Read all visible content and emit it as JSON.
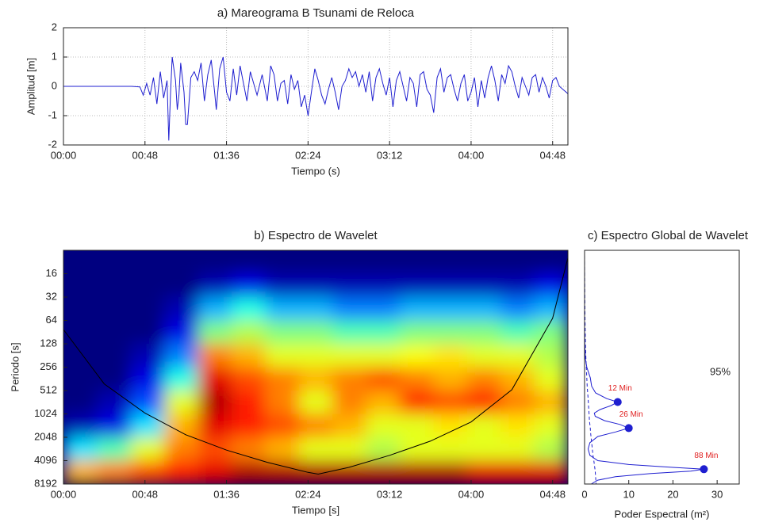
{
  "chart_data": [
    {
      "type": "line",
      "title": "a) Mareograma B Tsunami de Reloca",
      "xlabel": "Tiempo (s)",
      "ylabel": "Amplitud [m]",
      "x": [
        0,
        40,
        45,
        47,
        49,
        51,
        53,
        55,
        57,
        59,
        61,
        62,
        63,
        64,
        66,
        67,
        68,
        69,
        71,
        72,
        73,
        75,
        77,
        79,
        81,
        83,
        85,
        87,
        89,
        90,
        92,
        94,
        96,
        98,
        100,
        102,
        104,
        106,
        108,
        110,
        112,
        114,
        117,
        120,
        122,
        124,
        126,
        128,
        130,
        132,
        134,
        136,
        138,
        140,
        142,
        144,
        146,
        148,
        150,
        152,
        154,
        156,
        158,
        160,
        162,
        164,
        166,
        168,
        170,
        172,
        174,
        176,
        178,
        180,
        182,
        184,
        186,
        188,
        190,
        192,
        194,
        196,
        198,
        200,
        202,
        204,
        206,
        208,
        210,
        212,
        214,
        216,
        218,
        220,
        222,
        224,
        226,
        228,
        230,
        232,
        234,
        236,
        238,
        240,
        242,
        244,
        246,
        248,
        250,
        252,
        254,
        256,
        258,
        260,
        262,
        264,
        266,
        268,
        270,
        272,
        274,
        276,
        278,
        280,
        282,
        284,
        286,
        288,
        290,
        292,
        294,
        297
      ],
      "series": [
        {
          "color": "#1f1fd0",
          "values": [
            0,
            0,
            -0.02,
            -0.3,
            0.1,
            -0.3,
            0.3,
            -0.6,
            0.5,
            -0.4,
            0.2,
            -1.85,
            -0.3,
            1.0,
            0.2,
            -0.8,
            -0.3,
            0.8,
            -0.2,
            -1.3,
            -1.3,
            0.3,
            0.5,
            0.2,
            0.8,
            -0.5,
            0.4,
            0.9,
            -0.2,
            -0.8,
            0.6,
            1.0,
            -0.2,
            -0.5,
            0.6,
            -0.3,
            0.7,
            0.1,
            -0.5,
            0.5,
            0.1,
            -0.3,
            0.4,
            -0.5,
            0.7,
            0.4,
            -0.5,
            0.1,
            0.2,
            -0.6,
            0.4,
            -0.1,
            0.2,
            -0.7,
            -0.3,
            -1.0,
            -0.2,
            0.6,
            0.2,
            -0.3,
            -0.6,
            -0.1,
            0.3,
            -0.2,
            -0.8,
            0.0,
            0.2,
            0.6,
            0.3,
            0.5,
            0.0,
            0.4,
            -0.2,
            0.5,
            -0.5,
            0.3,
            0.6,
            0.1,
            -0.3,
            0.3,
            -0.7,
            0.2,
            0.5,
            0.0,
            -0.5,
            0.3,
            0.1,
            -0.7,
            0.4,
            0.5,
            -0.1,
            -0.3,
            -0.9,
            0.3,
            0.6,
            -0.2,
            0.3,
            0.4,
            -0.1,
            -0.5,
            0.1,
            0.4,
            -0.5,
            -0.2,
            0.3,
            -0.7,
            0.2,
            -0.4,
            0.3,
            0.7,
            0.2,
            -0.5,
            0.4,
            0.1,
            0.7,
            0.5,
            0.0,
            -0.4,
            0.3,
            0.0,
            -0.3,
            0.3,
            0.4,
            -0.2,
            0.3,
            0.0,
            -0.4,
            0.2,
            0.3,
            0.0,
            -0.1,
            -0.25
          ]
        }
      ],
      "xlim": [
        0,
        297
      ],
      "ylim": [
        -2,
        2
      ],
      "xticks": [
        {
          "value": 0,
          "label": "00:00"
        },
        {
          "value": 48,
          "label": "00:48"
        },
        {
          "value": 96,
          "label": "01:36"
        },
        {
          "value": 144,
          "label": "02:24"
        },
        {
          "value": 192,
          "label": "03:12"
        },
        {
          "value": 240,
          "label": "04:00"
        },
        {
          "value": 288,
          "label": "04:48"
        }
      ],
      "yticks": [
        -2,
        -1,
        0,
        1,
        2
      ],
      "grid": true
    },
    {
      "type": "heatmap",
      "title": "b) Espectro de Wavelet",
      "xlabel": "Tiempo [s]",
      "ylabel": "Periodo [s]",
      "xlim": [
        0,
        297
      ],
      "ylim": [
        8,
        8192
      ],
      "y_scale": "log2",
      "colormap": "jet",
      "xticks": [
        {
          "value": 0,
          "label": "00:00"
        },
        {
          "value": 48,
          "label": "00:48"
        },
        {
          "value": 96,
          "label": "01:36"
        },
        {
          "value": 144,
          "label": "02:24"
        },
        {
          "value": 192,
          "label": "03:12"
        },
        {
          "value": 240,
          "label": "04:00"
        },
        {
          "value": 288,
          "label": "04:48"
        }
      ],
      "yticks": [
        16,
        32,
        64,
        128,
        256,
        512,
        1024,
        2048,
        4096,
        8192
      ],
      "time_edges": [
        0,
        19.8,
        39.6,
        59.4,
        79.2,
        99,
        118.8,
        138.6,
        158.4,
        178.2,
        198,
        217.8,
        237.6,
        257.4,
        277.2,
        297
      ],
      "period_edges": [
        8,
        16,
        32,
        64,
        128,
        256,
        512,
        1024,
        2048,
        4096,
        8192
      ],
      "z": [
        [
          0,
          0,
          0,
          0,
          0,
          0,
          0,
          0,
          0,
          0,
          0,
          0,
          0,
          0,
          0
        ],
        [
          0,
          0,
          0,
          0,
          0.05,
          0.1,
          0.05,
          0.05,
          0.05,
          0.05,
          0.05,
          0.05,
          0.05,
          0.05,
          0.1
        ],
        [
          0,
          0,
          0,
          0.05,
          0.3,
          0.4,
          0.3,
          0.3,
          0.25,
          0.25,
          0.3,
          0.3,
          0.3,
          0.25,
          0.3
        ],
        [
          0,
          0,
          0,
          0.1,
          0.5,
          0.55,
          0.5,
          0.5,
          0.45,
          0.45,
          0.5,
          0.5,
          0.5,
          0.45,
          0.5
        ],
        [
          0,
          0,
          0.05,
          0.25,
          0.75,
          0.7,
          0.6,
          0.6,
          0.6,
          0.6,
          0.62,
          0.65,
          0.6,
          0.6,
          0.55
        ],
        [
          0,
          0,
          0.1,
          0.4,
          0.9,
          0.8,
          0.75,
          0.7,
          0.75,
          0.8,
          0.75,
          0.7,
          0.75,
          0.7,
          0.6
        ],
        [
          0,
          0.05,
          0.2,
          0.6,
          0.95,
          0.85,
          0.75,
          0.6,
          0.75,
          0.7,
          0.85,
          0.8,
          0.85,
          0.75,
          0.7
        ],
        [
          0.05,
          0.1,
          0.35,
          0.7,
          0.9,
          0.85,
          0.8,
          0.75,
          0.7,
          0.6,
          0.6,
          0.65,
          0.6,
          0.65,
          0.6
        ],
        [
          0.35,
          0.45,
          0.6,
          0.75,
          0.8,
          0.75,
          0.7,
          0.6,
          0.6,
          0.55,
          0.6,
          0.6,
          0.6,
          0.6,
          0.55
        ],
        [
          0.7,
          0.75,
          0.8,
          0.85,
          0.9,
          0.95,
          0.95,
          0.95,
          0.95,
          0.95,
          0.95,
          0.95,
          0.9,
          0.9,
          0.9
        ]
      ],
      "coi": {
        "x": [
          0,
          24,
          48,
          72,
          96,
          120,
          144,
          150,
          168,
          192,
          216,
          240,
          264,
          288,
          297
        ],
        "values": [
          84,
          420,
          1000,
          1900,
          3000,
          4300,
          5800,
          6100,
          5000,
          3500,
          2300,
          1300,
          500,
          60,
          10
        ],
        "color": "#000000"
      }
    },
    {
      "type": "line",
      "orientation": "horizontal",
      "title": "c) Espectro Global de Wavelet",
      "xlabel": "Poder Espectral (m²)",
      "xlim": [
        0,
        35
      ],
      "xticks": [
        0,
        10,
        20,
        30
      ],
      "ylim": [
        8,
        8192
      ],
      "y_scale": "log2",
      "periods": [
        8,
        16,
        32,
        64,
        128,
        200,
        256,
        350,
        450,
        550,
        650,
        720,
        800,
        900,
        1000,
        1100,
        1250,
        1400,
        1560,
        1750,
        2000,
        2400,
        2900,
        3500,
        4096,
        4600,
        5000,
        5280,
        5600,
        6000,
        6600,
        7300,
        8192
      ],
      "series": [
        {
          "color": "#1f1fd0",
          "style": "solid",
          "values": [
            0,
            0,
            0,
            0,
            0.05,
            0.2,
            0.5,
            1.3,
            1.6,
            2.5,
            5,
            7.5,
            6,
            3.5,
            2.2,
            2.4,
            4.5,
            8,
            10,
            7,
            3,
            1.2,
            0.8,
            1.2,
            3,
            10,
            20,
            27,
            24,
            15,
            7,
            3,
            1.5
          ]
        },
        {
          "color": "#1f1fd0",
          "style": "dashed",
          "values": [
            0,
            0.02,
            0.05,
            0.1,
            0.2,
            0.3,
            0.4,
            0.5,
            0.6,
            0.7,
            0.8,
            0.85,
            0.9,
            0.95,
            1.0,
            1.05,
            1.1,
            1.2,
            1.3,
            1.35,
            1.45,
            1.6,
            1.75,
            1.9,
            2.1,
            2.2,
            2.3,
            2.35,
            2.4,
            2.45,
            2.5,
            2.55,
            2.6
          ]
        }
      ],
      "peaks": {
        "periods": [
          720,
          1560,
          5280
        ],
        "values": [
          7.5,
          10,
          27
        ],
        "labels": [
          "12 Min",
          "26 Min",
          "88 Min"
        ],
        "color": "#1f1fd0",
        "label_color": "#e02020"
      },
      "annotation": "95%"
    }
  ]
}
